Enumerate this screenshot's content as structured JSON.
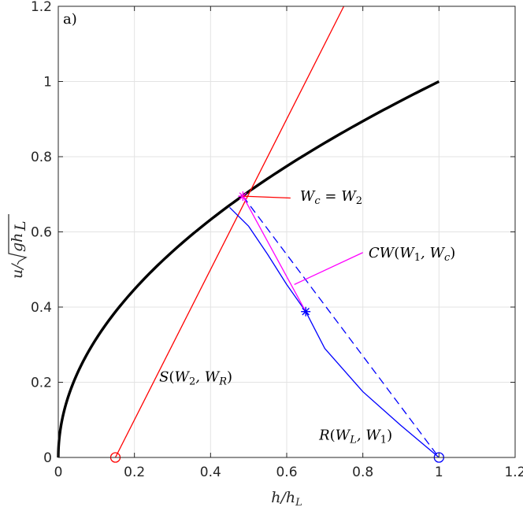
{
  "chart_data": {
    "type": "line",
    "panel_label": "a)",
    "xlabel": "h/h_L",
    "ylabel": "u/√(gh_L)",
    "xlim": [
      0,
      1.2
    ],
    "ylim": [
      0,
      1.2
    ],
    "xticks": [
      "0",
      "0.2",
      "0.4",
      "0.6",
      "0.8",
      "1",
      "1.2"
    ],
    "yticks": [
      "0",
      "0.2",
      "0.4",
      "0.6",
      "0.8",
      "1",
      "1.2"
    ],
    "grid": true,
    "colors": {
      "black": "#000000",
      "red": "#ff0000",
      "blue": "#0000ff",
      "magenta": "#ff00ff"
    },
    "series": [
      {
        "id": "critical",
        "color": "#000000",
        "style": "solid-thick",
        "formula": "u = sqrt(h)",
        "x_range": [
          0,
          1
        ]
      },
      {
        "id": "shock",
        "color": "#ff0000",
        "style": "solid",
        "points": [
          [
            0.15,
            0
          ],
          [
            0.75,
            1.2
          ]
        ]
      },
      {
        "id": "rarefaction",
        "color": "#0000ff",
        "style": "solid",
        "points": [
          [
            1,
            0
          ],
          [
            0.9,
            0.085
          ],
          [
            0.8,
            0.175
          ],
          [
            0.7,
            0.29
          ],
          [
            0.65,
            0.388
          ],
          [
            0.6,
            0.46
          ],
          [
            0.55,
            0.54
          ],
          [
            0.5,
            0.615
          ],
          [
            0.45,
            0.665
          ]
        ]
      },
      {
        "id": "dashed",
        "color": "#0000ff",
        "style": "dashed",
        "points": [
          [
            0.485,
            0.695
          ],
          [
            1,
            0
          ]
        ]
      },
      {
        "id": "contact",
        "color": "#ff00ff",
        "style": "solid",
        "points": [
          [
            0.485,
            0.695
          ],
          [
            0.65,
            0.388
          ]
        ]
      }
    ],
    "markers": [
      {
        "id": "W2",
        "x": 0.485,
        "y": 0.695,
        "shape": "star",
        "color": "#ff00ff"
      },
      {
        "id": "W1",
        "x": 0.65,
        "y": 0.388,
        "shape": "star",
        "color": "#0000ff"
      },
      {
        "id": "WL",
        "x": 1.0,
        "y": 0.0,
        "shape": "circle",
        "color": "#0000ff"
      },
      {
        "id": "WR",
        "x": 0.15,
        "y": 0.0,
        "shape": "circle",
        "color": "#ff0000"
      }
    ],
    "annotations": [
      {
        "id": "wc",
        "label": "W_c = W_2",
        "color": "#ff0000",
        "from": [
          0.485,
          0.695
        ],
        "to": [
          0.61,
          0.69
        ],
        "text_x": 0.635,
        "text_y": 0.695
      },
      {
        "id": "cw",
        "label": "CW(W_1, W_c)",
        "color": "#ff00ff",
        "from": [
          0.62,
          0.46
        ],
        "to": [
          0.8,
          0.545
        ],
        "text_x": 0.815,
        "text_y": 0.545
      },
      {
        "id": "s",
        "label": "S(W_2, W_R)",
        "text_x": 0.265,
        "text_y": 0.215
      },
      {
        "id": "r",
        "label": "R(W_L, W_1)",
        "text_x": 0.685,
        "text_y": 0.06
      }
    ]
  }
}
